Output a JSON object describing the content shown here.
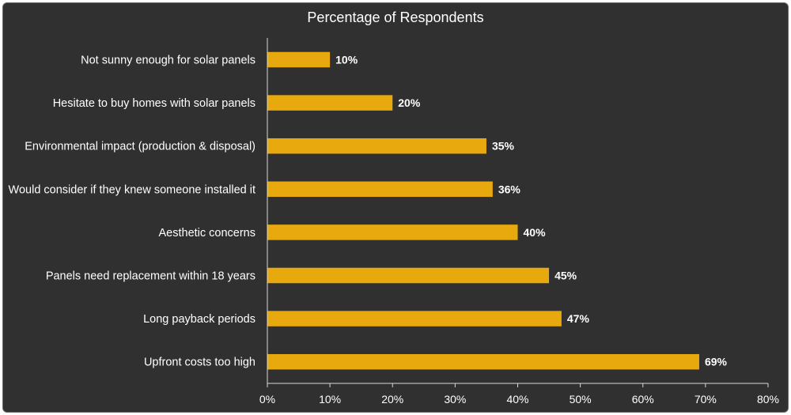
{
  "chart_data": {
    "type": "bar",
    "orientation": "horizontal",
    "title": "Percentage of Respondents",
    "xlabel": "",
    "ylabel": "",
    "categories": [
      "Not sunny enough for solar panels",
      "Hesitate to buy homes with solar panels",
      "Environmental impact (production & disposal)",
      "Would consider if they knew someone installed it",
      "Aesthetic concerns",
      "Panels need replacement within 18 years",
      "Long payback periods",
      "Upfront costs too high"
    ],
    "values": [
      10,
      20,
      35,
      36,
      40,
      45,
      47,
      69
    ],
    "value_labels": [
      "10%",
      "20%",
      "35%",
      "36%",
      "40%",
      "45%",
      "47%",
      "69%"
    ],
    "xlim": [
      0,
      80
    ],
    "x_ticks": [
      0,
      10,
      20,
      30,
      40,
      50,
      60,
      70,
      80
    ],
    "x_tick_labels": [
      "0%",
      "10%",
      "20%",
      "30%",
      "40%",
      "50%",
      "60%",
      "70%",
      "80%"
    ],
    "grid": false,
    "legend": "none",
    "colors": {
      "bar": "#E8A90E",
      "background": "#303030",
      "text": "#FFFFFF",
      "axis": "#D9D9D9"
    }
  }
}
